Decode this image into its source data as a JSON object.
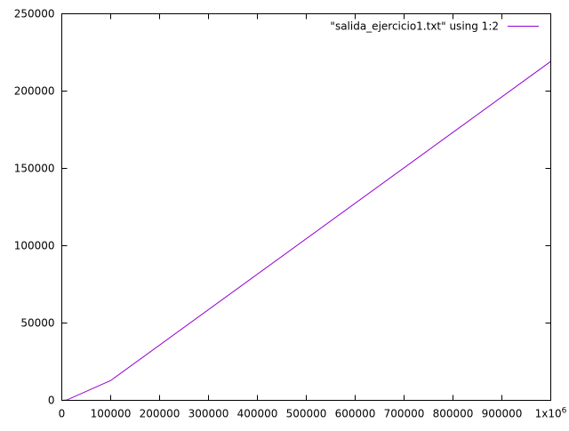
{
  "chart_data": {
    "type": "line",
    "title": "",
    "xlabel": "",
    "ylabel": "",
    "xlim": [
      0,
      1000000
    ],
    "ylim": [
      0,
      250000
    ],
    "x_ticks": [
      {
        "value": 0,
        "label": "0"
      },
      {
        "value": 100000,
        "label": "100000"
      },
      {
        "value": 200000,
        "label": "200000"
      },
      {
        "value": 300000,
        "label": "300000"
      },
      {
        "value": 400000,
        "label": "400000"
      },
      {
        "value": 500000,
        "label": "500000"
      },
      {
        "value": 600000,
        "label": "600000"
      },
      {
        "value": 700000,
        "label": "700000"
      },
      {
        "value": 800000,
        "label": "800000"
      },
      {
        "value": 900000,
        "label": "900000"
      },
      {
        "value": 1000000,
        "label": "1x10",
        "exponent": "6"
      }
    ],
    "y_ticks": [
      {
        "value": 0,
        "label": "0"
      },
      {
        "value": 50000,
        "label": "50000"
      },
      {
        "value": 100000,
        "label": "100000"
      },
      {
        "value": 150000,
        "label": "150000"
      },
      {
        "value": 200000,
        "label": "200000"
      },
      {
        "value": 250000,
        "label": "250000"
      }
    ],
    "grid": false,
    "legend": "top-right",
    "series": [
      {
        "name": "\"salida_ejercicio1.txt\" using 1:2",
        "color": "#9400d3",
        "x": [
          0,
          10000,
          100000,
          1000000
        ],
        "y": [
          0,
          200,
          12800,
          219200
        ]
      }
    ]
  }
}
